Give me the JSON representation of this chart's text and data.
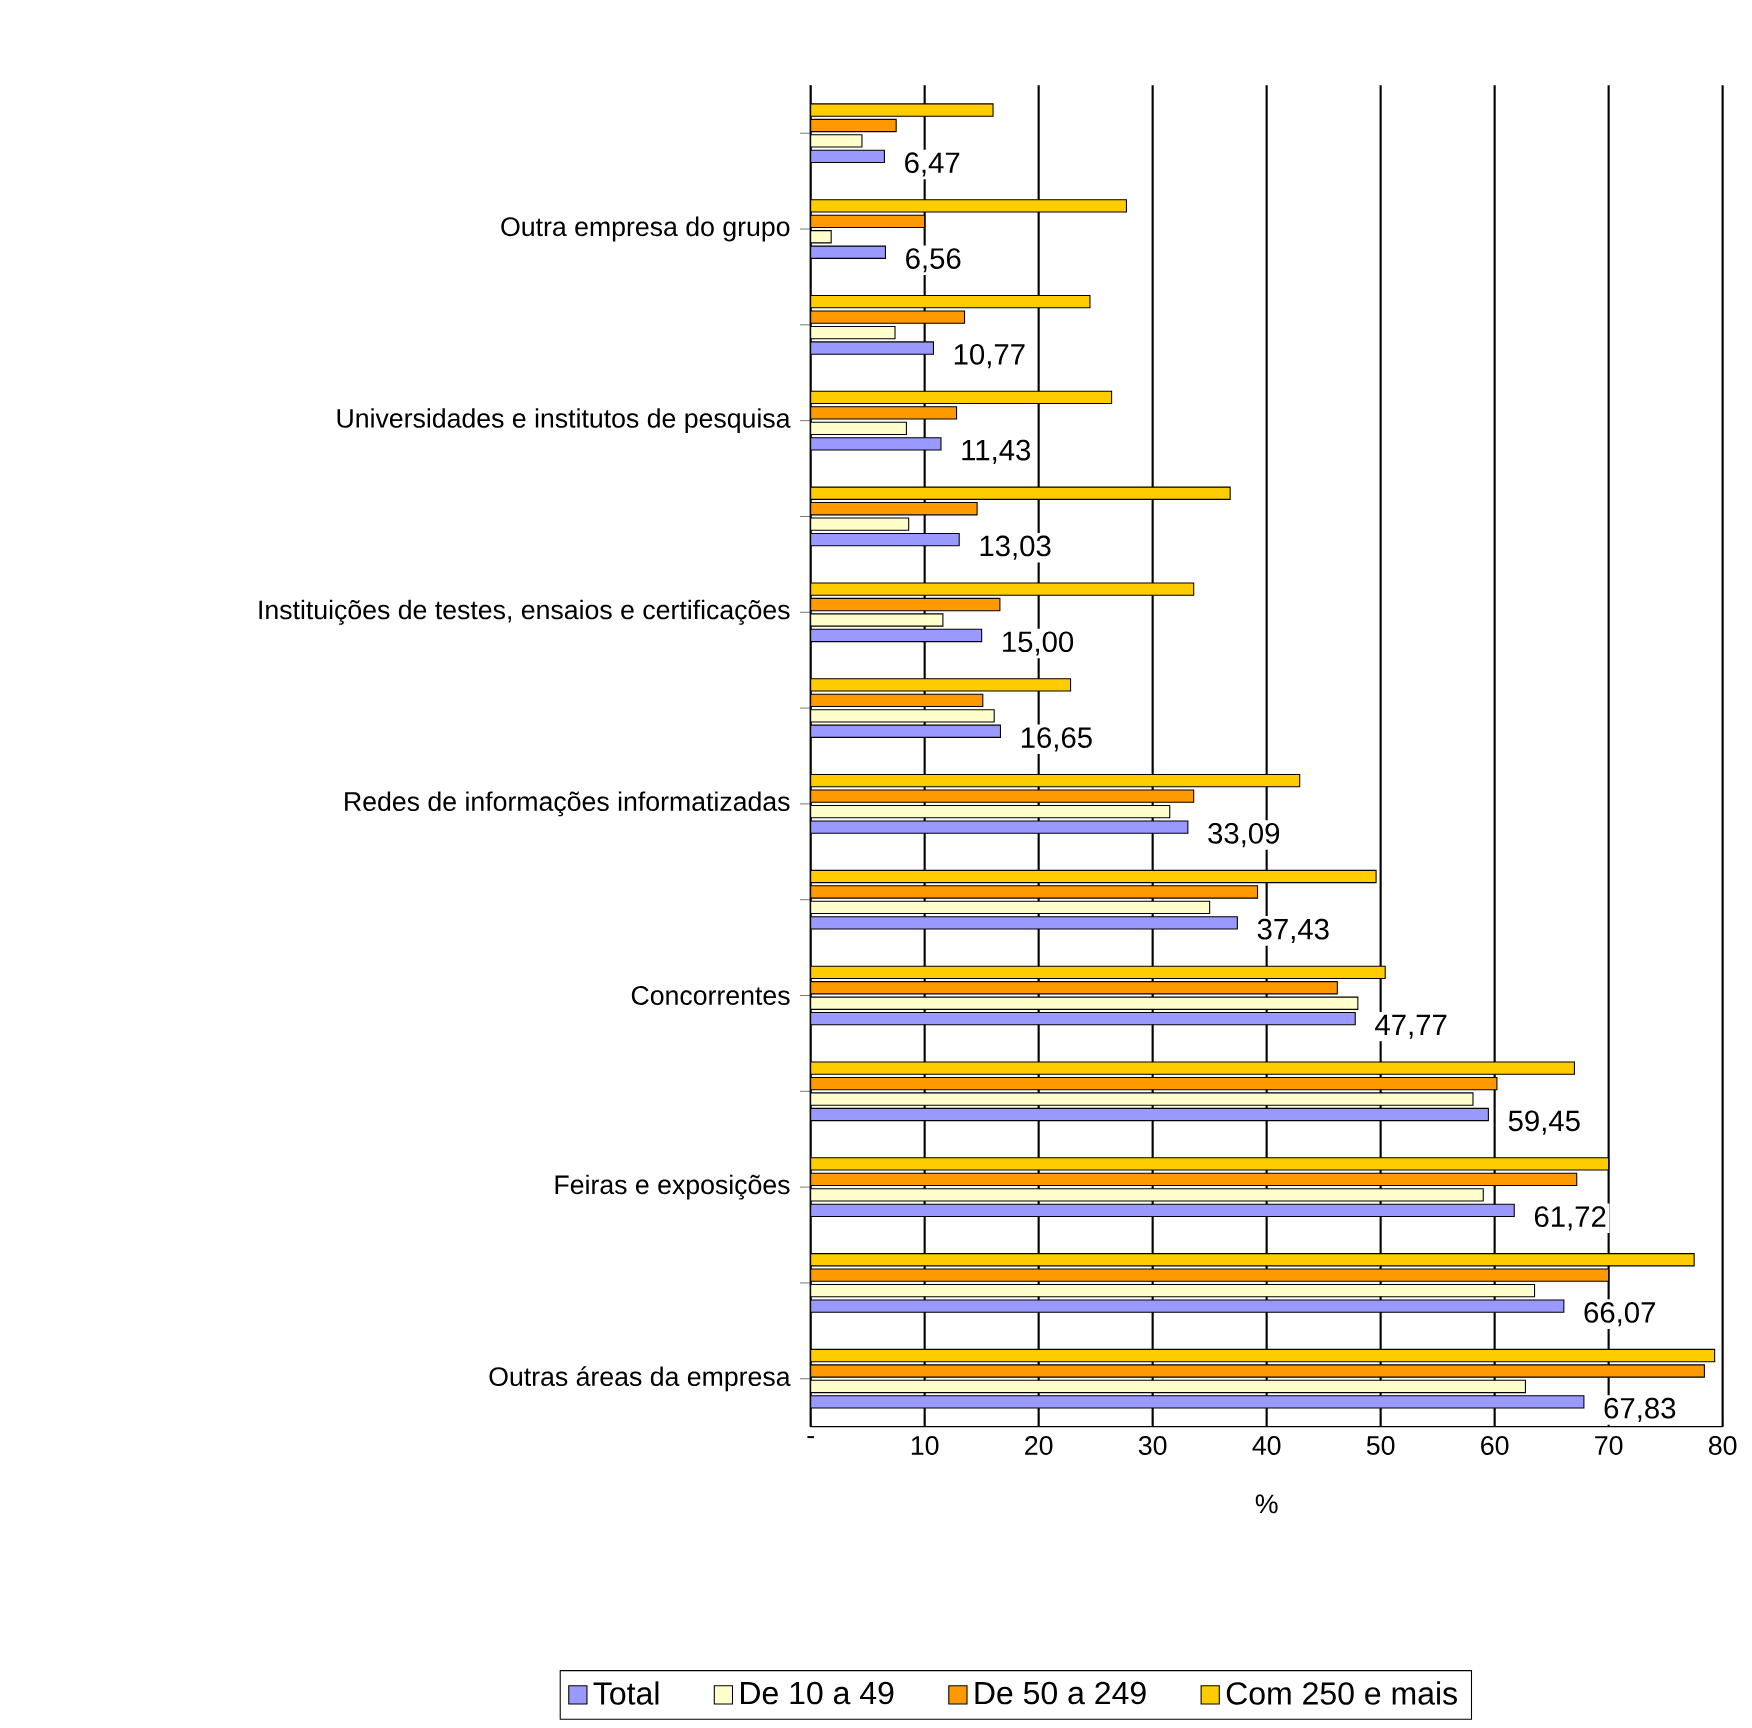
{
  "chart_data": {
    "type": "bar",
    "orientation": "horizontal",
    "xlabel": "%",
    "categories": [
      null,
      "Outra empresa do grupo",
      null,
      "Universidades e institutos de pesquisa",
      null,
      "Instituições de testes, ensaios e certificações",
      null,
      "Redes de informações informatizadas",
      null,
      "Concorrentes",
      null,
      "Feiras e exposições",
      null,
      "Outras áreas da empresa"
    ],
    "series": [
      {
        "name": "Total",
        "color": "#9999ff",
        "values": [
          6.47,
          6.56,
          10.77,
          11.43,
          13.03,
          15.0,
          16.65,
          33.09,
          37.43,
          47.77,
          59.45,
          61.72,
          66.07,
          67.83
        ],
        "value_labels": [
          "6,47",
          "6,56",
          "10,77",
          "11,43",
          "13,03",
          "15,00",
          "16,65",
          "33,09",
          "37,43",
          "47,77",
          "59,45",
          "61,72",
          "66,07",
          "67,83"
        ]
      },
      {
        "name": "De   10 a 49",
        "color": "#ffffcc",
        "values": [
          4.5,
          1.8,
          7.4,
          8.4,
          8.6,
          11.6,
          16.1,
          31.5,
          35.0,
          48.0,
          58.1,
          59.0,
          63.5,
          62.7
        ]
      },
      {
        "name": "De   50 a 249",
        "color": "#ff9900",
        "values": [
          7.5,
          10.0,
          13.5,
          12.8,
          14.6,
          16.6,
          15.1,
          33.6,
          39.2,
          46.2,
          60.2,
          67.2,
          70.0,
          78.4
        ]
      },
      {
        "name": "Com 250 e mais",
        "color": "#ffcc00",
        "values": [
          16.0,
          27.7,
          24.5,
          26.4,
          36.8,
          33.6,
          22.8,
          42.9,
          49.6,
          50.4,
          67.0,
          70.0,
          77.5,
          79.3
        ]
      }
    ],
    "xlim": [
      0,
      80
    ],
    "xticks": [
      {
        "value": 0,
        "label": "-"
      },
      10,
      20,
      30,
      40,
      50,
      60,
      70,
      80
    ],
    "grid": "x",
    "legend": "bottom"
  }
}
